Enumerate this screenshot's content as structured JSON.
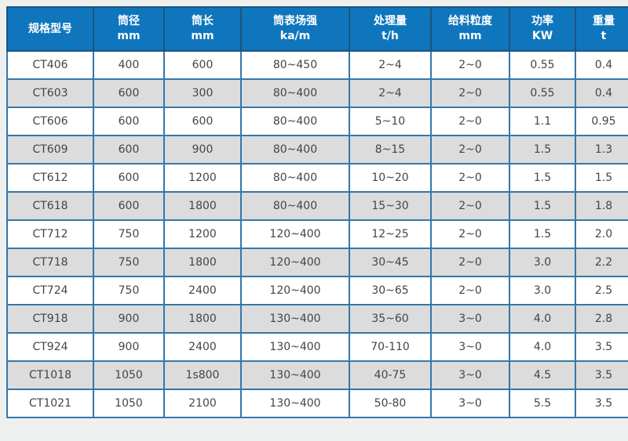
{
  "page": {
    "background_color": "#eef0ef"
  },
  "table": {
    "header_bg_color": "#0f76bd",
    "header_text_color": "#ffffff",
    "body_border_color": "#3577a8",
    "header_border_color": "#1c547e",
    "row_bg_color": "#ffffff",
    "row_alt_bg_color": "#dcdcdc",
    "body_text_color": "#454545",
    "columns": [
      {
        "key": "model",
        "label": "规格型号",
        "unit": ""
      },
      {
        "key": "diameter",
        "label": "筒径",
        "unit": "mm"
      },
      {
        "key": "length",
        "label": "筒长",
        "unit": "mm"
      },
      {
        "key": "field",
        "label": "筒表场强",
        "unit": "ka/m"
      },
      {
        "key": "capacity",
        "label": "处理量",
        "unit": "t/h"
      },
      {
        "key": "feed-size",
        "label": "给料粒度",
        "unit": "mm"
      },
      {
        "key": "power",
        "label": "功率",
        "unit": "KW"
      },
      {
        "key": "weight",
        "label": "重量",
        "unit": "t"
      }
    ],
    "rows": [
      [
        "CT406",
        "400",
        "600",
        "80~450",
        "2~4",
        "2~0",
        "0.55",
        "0.4"
      ],
      [
        "CT603",
        "600",
        "300",
        "80~400",
        "2~4",
        "2~0",
        "0.55",
        "0.4"
      ],
      [
        "CT606",
        "600",
        "600",
        "80~400",
        "5~10",
        "2~0",
        "1.1",
        "0.95"
      ],
      [
        "CT609",
        "600",
        "900",
        "80~400",
        "8~15",
        "2~0",
        "1.5",
        "1.3"
      ],
      [
        "CT612",
        "600",
        "1200",
        "80~400",
        "10~20",
        "2~0",
        "1.5",
        "1.5"
      ],
      [
        "CT618",
        "600",
        "1800",
        "80~400",
        "15~30",
        "2~0",
        "1.5",
        "1.8"
      ],
      [
        "CT712",
        "750",
        "1200",
        "120~400",
        "12~25",
        "2~0",
        "1.5",
        "2.0"
      ],
      [
        "CT718",
        "750",
        "1800",
        "120~400",
        "30~45",
        "2~0",
        "3.0",
        "2.2"
      ],
      [
        "CT724",
        "750",
        "2400",
        "120~400",
        "30~65",
        "2~0",
        "3.0",
        "2.5"
      ],
      [
        "CT918",
        "900",
        "1800",
        "130~400",
        "35~60",
        "3~0",
        "4.0",
        "2.8"
      ],
      [
        "CT924",
        "900",
        "2400",
        "130~400",
        "70-110",
        "3~0",
        "4.0",
        "3.5"
      ],
      [
        "CT1018",
        "1050",
        "1s800",
        "130~400",
        "40-75",
        "3~0",
        "4.5",
        "3.5"
      ],
      [
        "CT1021",
        "1050",
        "2100",
        "130~400",
        "50-80",
        "3~0",
        "5.5",
        "3.5"
      ]
    ]
  }
}
